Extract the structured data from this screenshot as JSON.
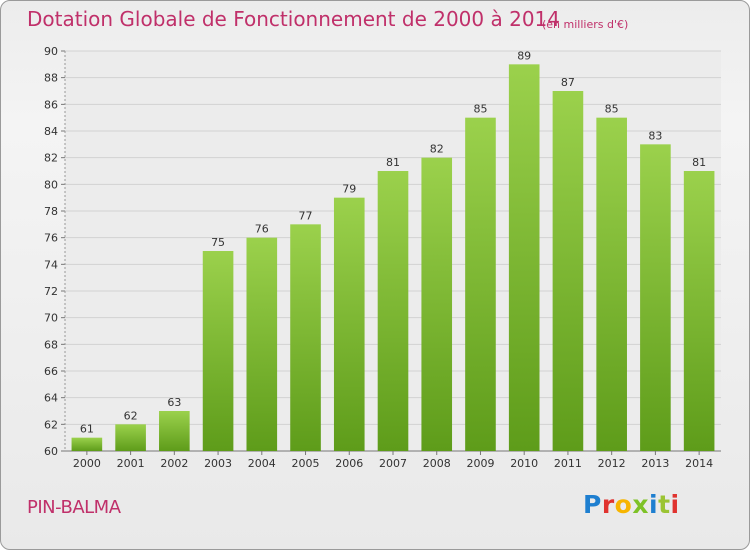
{
  "header": {
    "title": "Dotation Globale de Fonctionnement de 2000 à 2014",
    "unit": "(en milliers d'€)"
  },
  "footer": {
    "commune": "PIN-BALMA",
    "logo": "Proxiti",
    "logo_colors": [
      "#1e7fd0",
      "#e0332f",
      "#f7b500",
      "#7ec227",
      "#1e7fd0",
      "#9bc433",
      "#e0332f"
    ]
  },
  "colors": {
    "title": "#c0306a",
    "bar_light": "#9bd14c",
    "bar_dark": "#5e9c1a"
  },
  "chart_data": {
    "type": "bar",
    "title": "Dotation Globale de Fonctionnement de 2000 à 2014",
    "subtitle": "(en milliers d'€)",
    "xlabel": "",
    "ylabel": "",
    "categories": [
      "2000",
      "2001",
      "2002",
      "2003",
      "2004",
      "2005",
      "2006",
      "2007",
      "2008",
      "2009",
      "2010",
      "2011",
      "2012",
      "2013",
      "2014"
    ],
    "values": [
      61,
      62,
      63,
      75,
      76,
      77,
      79,
      81,
      82,
      85,
      89,
      87,
      85,
      83,
      81
    ],
    "ylim": [
      60,
      90
    ],
    "yticks": [
      60,
      62,
      64,
      66,
      68,
      70,
      72,
      74,
      76,
      78,
      80,
      82,
      84,
      86,
      88,
      90
    ],
    "grid": true,
    "data_labels": true
  }
}
